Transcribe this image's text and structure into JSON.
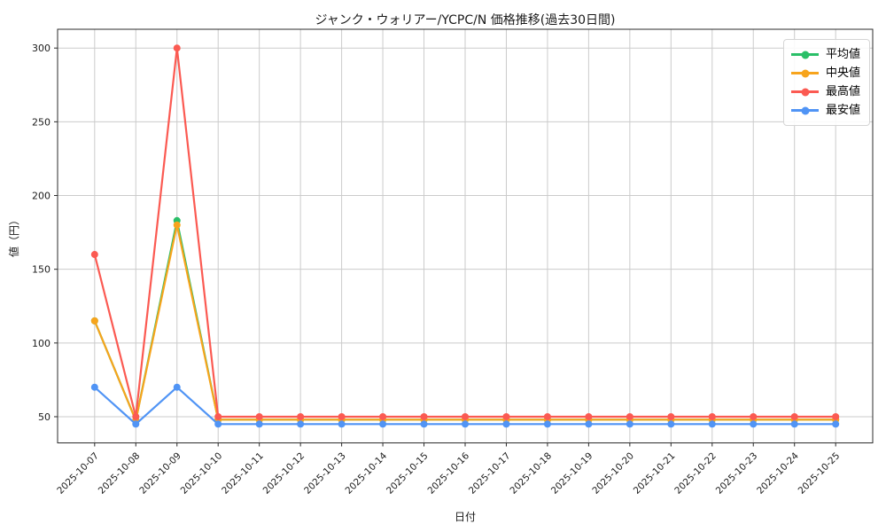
{
  "chart_data": {
    "type": "line",
    "title": "ジャンク・ウォリアー/YCPC/N 価格推移(過去30日間)",
    "xlabel": "日付",
    "ylabel": "値（円）",
    "categories": [
      "2025-10-07",
      "2025-10-08",
      "2025-10-09",
      "2025-10-10",
      "2025-10-11",
      "2025-10-12",
      "2025-10-13",
      "2025-10-14",
      "2025-10-15",
      "2025-10-16",
      "2025-10-17",
      "2025-10-18",
      "2025-10-19",
      "2025-10-20",
      "2025-10-21",
      "2025-10-22",
      "2025-10-23",
      "2025-10-24",
      "2025-10-25"
    ],
    "series": [
      {
        "name": "平均値",
        "key": "average",
        "color": "#2abf68",
        "values": [
          115,
          47.5,
          183,
          48,
          48,
          48,
          48,
          48,
          48,
          48,
          48,
          48,
          48,
          48,
          48,
          48,
          48,
          48,
          48
        ]
      },
      {
        "name": "中央値",
        "key": "median",
        "color": "#f7a41c",
        "values": [
          115,
          47.5,
          180,
          48,
          48,
          48,
          48,
          48,
          48,
          48,
          48,
          48,
          48,
          48,
          48,
          48,
          48,
          48,
          48
        ]
      },
      {
        "name": "最高値",
        "key": "max",
        "color": "#fb5a52",
        "values": [
          160,
          50,
          300,
          50,
          50,
          50,
          50,
          50,
          50,
          50,
          50,
          50,
          50,
          50,
          50,
          50,
          50,
          50,
          50
        ]
      },
      {
        "name": "最安値",
        "key": "min",
        "color": "#5094f5",
        "values": [
          70,
          45,
          70,
          45,
          45,
          45,
          45,
          45,
          45,
          45,
          45,
          45,
          45,
          45,
          45,
          45,
          45,
          45,
          45
        ]
      }
    ],
    "yticks": [
      50,
      100,
      150,
      200,
      250,
      300
    ],
    "ylim": [
      32.25,
      312.75
    ],
    "grid": true,
    "legend_position": "upper-right",
    "x_tick_rotation_deg": 45
  }
}
